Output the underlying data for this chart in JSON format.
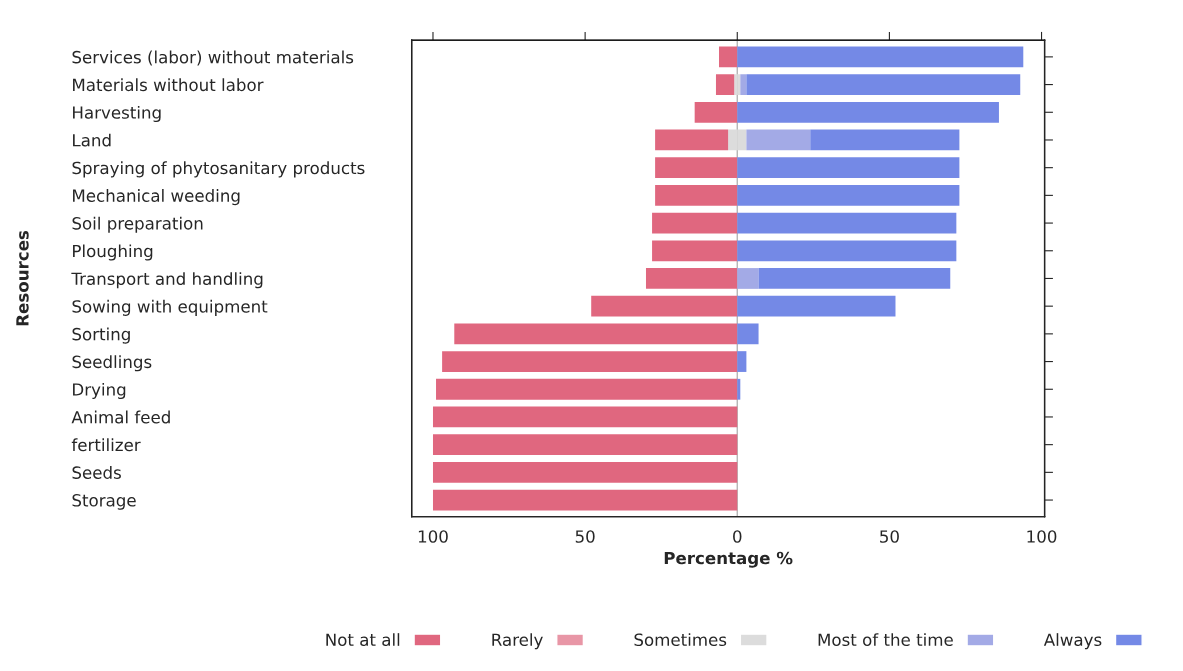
{
  "chart_data": {
    "type": "bar",
    "orientation": "horizontal",
    "stacked": true,
    "categories": [
      "Services (labor) without materials",
      "Materials without labor",
      "Harvesting",
      "Land",
      "Spraying of phytosanitary products",
      "Mechanical weeding",
      "Soil preparation",
      "Ploughing",
      "Transport and handling",
      "Sowing with equipment",
      "Sorting",
      "Seedlings",
      "Drying",
      "Animal feed",
      "fertilizer",
      "Seeds",
      "Storage"
    ],
    "series": [
      {
        "name": "Sometimes",
        "color": "#dcdcdc",
        "values": [
          0,
          -1,
          0,
          -3,
          0,
          0,
          0,
          0,
          0,
          0,
          0,
          0,
          0,
          0,
          0,
          0,
          0
        ]
      },
      {
        "name": "Rarely",
        "color": "#e896a6",
        "values": [
          0,
          0,
          0,
          0,
          0,
          0,
          0,
          0,
          0,
          0,
          0,
          0,
          0,
          0,
          0,
          0,
          0
        ]
      },
      {
        "name": "Not at all",
        "color": "#e0677f",
        "values": [
          -6,
          -6,
          -14,
          -24,
          -27,
          -27,
          -28,
          -28,
          -30,
          -48,
          -93,
          -97,
          -99,
          -100,
          -100,
          -100,
          -100
        ]
      },
      {
        "color": "#dcdcdc",
        "values": [
          0,
          1,
          0,
          3,
          0,
          0,
          0,
          0,
          0,
          0,
          0,
          0,
          0,
          0,
          0,
          0,
          0
        ]
      },
      {
        "name": "Most of the time",
        "color": "#a3aae6",
        "values": [
          0,
          2,
          0,
          21,
          0,
          0,
          0,
          0,
          7,
          0,
          0,
          0,
          0,
          0,
          0,
          0,
          0
        ]
      },
      {
        "name": "Always",
        "color": "#7489e6",
        "values": [
          94,
          90,
          86,
          49,
          73,
          73,
          72,
          72,
          63,
          52,
          7,
          3,
          1,
          0,
          0,
          0,
          0
        ]
      }
    ],
    "xlim": [
      -107,
      101
    ],
    "xticks": [
      {
        "value": -100,
        "label": "100"
      },
      {
        "value": -50,
        "label": "50"
      },
      0,
      50,
      100
    ],
    "xlabel": "Percentage %",
    "ylabel": "Resources",
    "ref_lines": [
      {
        "axis": "x",
        "value": 0,
        "color": "#b4b4b4"
      }
    ],
    "grid": false,
    "legend": "bottom"
  }
}
